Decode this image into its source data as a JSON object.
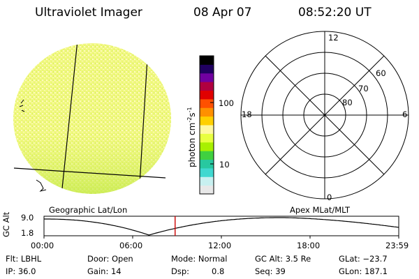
{
  "header": {
    "instrument": "Ultraviolet Imager",
    "date": "08 Apr 07",
    "time": "08:52:20 UT"
  },
  "colorbar": {
    "unit_label": "photon cm",
    "unit_exp1": "-2",
    "unit_mid": "s",
    "unit_exp2": "-1",
    "tick_100": "100",
    "tick_10": "10",
    "scale": "log",
    "colors": [
      "#e8e8e8",
      "#c8f0f0",
      "#40d8d0",
      "#28c8a0",
      "#40d040",
      "#a8f000",
      "#e8ff40",
      "#fff8a0",
      "#ffd000",
      "#ff9000",
      "#ff5000",
      "#e00000",
      "#b00040",
      "#7000a0",
      "#200060",
      "#000000"
    ]
  },
  "polar_plot": {
    "label_top": "12",
    "label_left": "18",
    "label_right": "6",
    "label_bottom": "0",
    "ring_60": "60",
    "ring_70": "70",
    "ring_80": "80"
  },
  "coord_labels": {
    "geographic": "Geographic Lat/Lon",
    "apex": "Apex MLat/MLT"
  },
  "altitude_plot": {
    "axis_label": "GC Alt",
    "y_top": "9.0",
    "y_bottom": "1.8",
    "x_ticks": [
      "00:00",
      "06:00",
      "12:00",
      "18:00",
      "23:59"
    ],
    "current_time_marker_hour": 8.87,
    "marker_color": "#cc0000"
  },
  "info": {
    "flt": "Flt: LBHL",
    "door": "Door: Open",
    "mode": "Mode: Normal",
    "gc_alt": "GC Alt: 3.5 Re",
    "glat": "GLat: −23.7",
    "ip": "IP: 36.0",
    "gain": "Gain: 14",
    "dsp_label": "Dsp:",
    "dsp_value": "0.8",
    "seq": "Seq: 39",
    "glon": "GLon: 187.1"
  },
  "colors": {
    "image_fill": "#f0f880",
    "image_dark": "#d8f060",
    "image_light": "#fffac0"
  }
}
